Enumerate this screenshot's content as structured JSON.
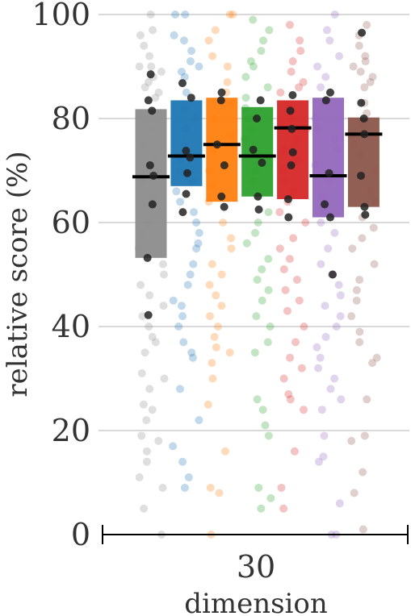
{
  "chart_data": {
    "type": "box",
    "title": "",
    "xlabel": "dimension",
    "ylabel": "relative score (%)",
    "ylim": [
      0,
      100
    ],
    "yticks": [
      0,
      20,
      40,
      60,
      80,
      100
    ],
    "ytick_labels": [
      "0",
      "20",
      "40",
      "60",
      "80",
      "100"
    ],
    "categories": [
      "30"
    ],
    "grid": "horizontal",
    "legend": "none",
    "series": [
      {
        "color": "#8c8c8c",
        "q1": 53.2,
        "median": 68.8,
        "q3": 81.8,
        "highlight": [
          88.5,
          83.5,
          81.5,
          71.0,
          69.0,
          63.5,
          53.2,
          42.2
        ],
        "points": [
          100,
          97,
          96,
          94,
          92,
          90,
          90,
          89,
          88,
          87,
          86,
          85,
          84,
          81,
          78,
          75,
          72,
          68,
          65,
          60,
          58,
          55,
          52,
          50,
          48,
          46,
          44,
          42,
          40,
          38,
          37,
          35,
          31,
          30,
          28,
          25,
          24,
          22,
          19,
          18,
          16,
          14,
          11,
          9,
          5,
          0
        ]
      },
      {
        "color": "#1f77b4",
        "q1": 67.0,
        "median": 72.8,
        "q3": 83.5,
        "highlight": [
          86.8,
          84.0,
          73.8,
          72.5,
          69.5,
          65.5,
          62.0
        ],
        "points": [
          100,
          100,
          96,
          95,
          93,
          91,
          90,
          89,
          88,
          85,
          82,
          80,
          78,
          75,
          72,
          70,
          68,
          66,
          64,
          62,
          60,
          58,
          56,
          55,
          52,
          50,
          48,
          45,
          44,
          42,
          40,
          37,
          35,
          34,
          28,
          22,
          17,
          14,
          11,
          9
        ]
      },
      {
        "color": "#ff7f0e",
        "q1": 64.0,
        "median": 75.0,
        "q3": 84.0,
        "highlight": [
          85.0,
          83.5,
          75.0,
          71.0,
          65.0,
          63.0
        ],
        "points": [
          100,
          100,
          97,
          95,
          92,
          90,
          87,
          85,
          83,
          80,
          77,
          74,
          70,
          67,
          64,
          60,
          57,
          55,
          52,
          50,
          48,
          46,
          44,
          42,
          40,
          38,
          36,
          35,
          33,
          30,
          25,
          16,
          9,
          8,
          0
        ]
      },
      {
        "color": "#2ca02c",
        "q1": 65.0,
        "median": 72.8,
        "q3": 82.2,
        "highlight": [
          83.5,
          80.0,
          74.0,
          71.5,
          65.0,
          62.5
        ],
        "points": [
          99,
          97,
          95,
          93,
          91,
          90,
          88,
          86,
          84,
          82,
          80,
          78,
          76,
          73,
          70,
          68,
          65,
          62,
          60,
          58,
          56,
          53,
          51,
          49,
          47,
          45,
          42,
          40,
          37,
          35,
          26,
          24,
          21,
          19,
          9,
          7,
          5
        ]
      },
      {
        "color": "#d62728",
        "q1": 64.5,
        "median": 78.2,
        "q3": 83.5,
        "highlight": [
          84.5,
          81.5,
          78.0,
          73.5,
          71.0,
          64.5,
          61.0
        ],
        "points": [
          98,
          95,
          93,
          91,
          89,
          87,
          86,
          85,
          82,
          80,
          78,
          76,
          74,
          72,
          70,
          68,
          66,
          64,
          62,
          60,
          57,
          55,
          53,
          51,
          49,
          47,
          45,
          43,
          40,
          37,
          34,
          32,
          30,
          27,
          26,
          24,
          16,
          9,
          5
        ]
      },
      {
        "color": "#9467bd",
        "q1": 61.0,
        "median": 69.0,
        "q3": 84.0,
        "highlight": [
          85.0,
          83.5,
          69.5,
          63.5,
          61.0,
          50.0
        ],
        "points": [
          100,
          97,
          95,
          92,
          90,
          88,
          86,
          83,
          80,
          78,
          76,
          74,
          71,
          68,
          65,
          62,
          60,
          58,
          55,
          52,
          50,
          48,
          46,
          44,
          42,
          40,
          38,
          36,
          34,
          32,
          30,
          28,
          26,
          24,
          19,
          15,
          14,
          6,
          0,
          0
        ]
      },
      {
        "color": "#8c564b",
        "q1": 63.0,
        "median": 77.0,
        "q3": 80.2,
        "highlight": [
          96.5,
          83.0,
          80.0,
          77.0,
          69.0,
          63.0,
          61.5
        ],
        "points": [
          98,
          96,
          94,
          92,
          91,
          90,
          89,
          88,
          87,
          86,
          83,
          81,
          79,
          77,
          75,
          73,
          70,
          66,
          64,
          61,
          59,
          57,
          55,
          52,
          49,
          47,
          45,
          42,
          39,
          37,
          34,
          33,
          26,
          19,
          18,
          12,
          8,
          1
        ]
      }
    ]
  }
}
